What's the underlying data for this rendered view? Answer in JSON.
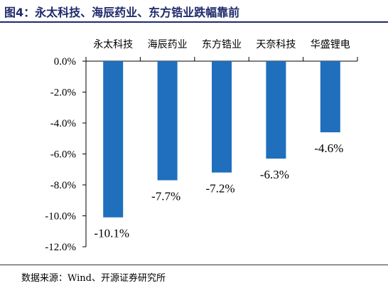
{
  "title": "图4：永太科技、海辰药业、东方锆业跌幅靠前",
  "source": "数据来源：Wind、开源证券研究所",
  "colors": {
    "bar": "#1f6fbd",
    "title": "#1f2a6b"
  },
  "chart_data": {
    "type": "bar",
    "title": "图4：永太科技、海辰药业、东方锆业跌幅靠前",
    "categories": [
      "永太科技",
      "海辰药业",
      "东方锆业",
      "天奈科技",
      "华盛锂电"
    ],
    "values": [
      -10.1,
      -7.7,
      -7.2,
      -6.3,
      -4.6
    ],
    "data_labels": [
      "-10.1%",
      "-7.7%",
      "-7.2%",
      "-6.3%",
      "-4.6%"
    ],
    "y_ticks": [
      0,
      -2,
      -4,
      -6,
      -8,
      -10,
      -12
    ],
    "y_tick_labels": [
      "0.0%",
      "-2.0%",
      "-4.0%",
      "-6.0%",
      "-8.0%",
      "-10.0%",
      "-12.0%"
    ],
    "ylim": [
      -12,
      0
    ],
    "xlabel": "",
    "ylabel": "",
    "grid": false,
    "legend": "none",
    "category_axis_position": "top"
  }
}
